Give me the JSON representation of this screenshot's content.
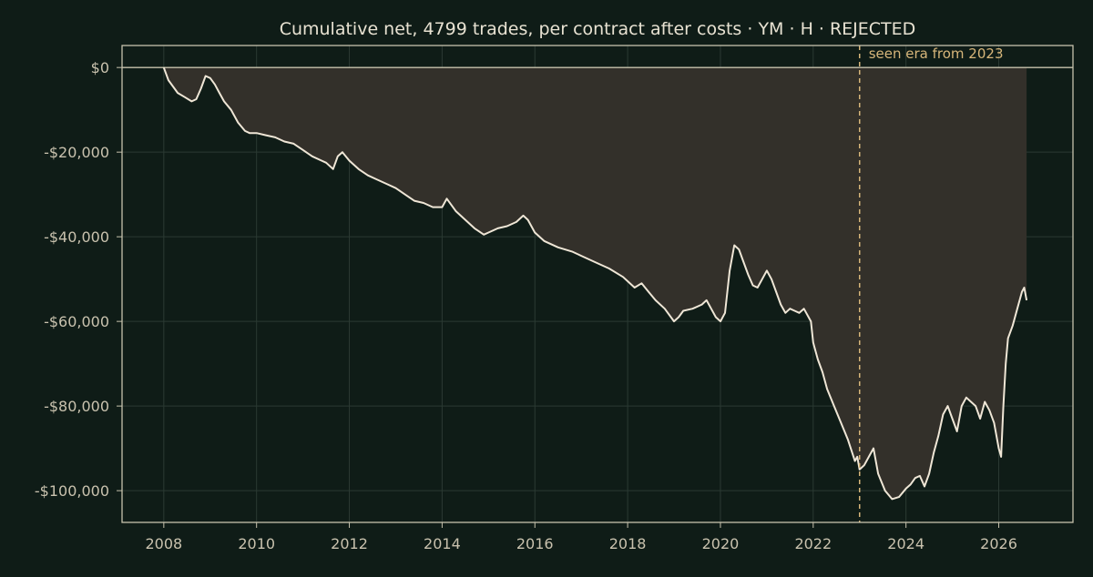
{
  "colors": {
    "background": "#0f1c17",
    "axes": "#c7c2ad",
    "grid": "#2b3a33",
    "line": "#efe6d6",
    "fill": "#33302a",
    "zero_line": "#c7c2ad",
    "era_marker": "#d7b67a",
    "text": "#c9c2ae",
    "title": "#e8e2d2"
  },
  "chart_data": {
    "type": "area",
    "title": "Cumulative net, 4799 trades, per contract after costs  ·  YM · H · REJECTED",
    "xlabel": "",
    "ylabel": "",
    "xlim": [
      2007.1,
      2027.6
    ],
    "ylim": [
      -107500,
      5200
    ],
    "x_ticks": [
      2008,
      2010,
      2012,
      2014,
      2016,
      2018,
      2020,
      2022,
      2024,
      2026
    ],
    "x_tick_labels": [
      "2008",
      "2010",
      "2012",
      "2014",
      "2016",
      "2018",
      "2020",
      "2022",
      "2024",
      "2026"
    ],
    "y_ticks": [
      0,
      -20000,
      -40000,
      -60000,
      -80000,
      -100000
    ],
    "y_tick_labels": [
      "$0",
      "-$20,000",
      "-$40,000",
      "-$60,000",
      "-$80,000",
      "-$100,000"
    ],
    "grid": true,
    "baseline": 0,
    "annotation": {
      "x": 2023.0,
      "text": "seen era from 2023"
    },
    "series": [
      {
        "x": [
          2008.0,
          2008.1,
          2008.2,
          2008.3,
          2008.45,
          2008.6,
          2008.7,
          2008.8,
          2008.9,
          2009.0,
          2009.1,
          2009.2,
          2009.3,
          2009.45,
          2009.6,
          2009.75,
          2009.85,
          2010.0,
          2010.2,
          2010.4,
          2010.6,
          2010.8,
          2011.0,
          2011.2,
          2011.4,
          2011.5,
          2011.65,
          2011.75,
          2011.85,
          2012.0,
          2012.2,
          2012.4,
          2012.6,
          2012.8,
          2013.0,
          2013.2,
          2013.4,
          2013.6,
          2013.8,
          2014.0,
          2014.1,
          2014.3,
          2014.5,
          2014.7,
          2014.9,
          2015.0,
          2015.2,
          2015.4,
          2015.6,
          2015.75,
          2015.85,
          2016.0,
          2016.2,
          2016.5,
          2016.8,
          2017.0,
          2017.3,
          2017.6,
          2017.9,
          2018.0,
          2018.15,
          2018.3,
          2018.45,
          2018.6,
          2018.8,
          2019.0,
          2019.1,
          2019.2,
          2019.4,
          2019.6,
          2019.7,
          2019.8,
          2019.9,
          2020.0,
          2020.1,
          2020.2,
          2020.3,
          2020.4,
          2020.5,
          2020.6,
          2020.7,
          2020.8,
          2020.9,
          2021.0,
          2021.1,
          2021.2,
          2021.3,
          2021.4,
          2021.5,
          2021.6,
          2021.7,
          2021.8,
          2021.95,
          2022.0,
          2022.1,
          2022.2,
          2022.3,
          2022.45,
          2022.6,
          2022.75,
          2022.9,
          2022.95,
          2023.0,
          2023.1,
          2023.2,
          2023.3,
          2023.4,
          2023.55,
          2023.7,
          2023.85,
          2024.0,
          2024.1,
          2024.2,
          2024.3,
          2024.4,
          2024.5,
          2024.6,
          2024.7,
          2024.8,
          2024.9,
          2025.0,
          2025.1,
          2025.2,
          2025.3,
          2025.4,
          2025.5,
          2025.6,
          2025.7,
          2025.8,
          2025.9,
          2026.0,
          2026.05,
          2026.1,
          2026.15,
          2026.2,
          2026.3,
          2026.4,
          2026.5,
          2026.55,
          2026.6
        ],
        "values": [
          0,
          -3000,
          -4500,
          -6000,
          -7000,
          -8000,
          -7500,
          -5000,
          -2000,
          -2500,
          -4000,
          -6000,
          -8000,
          -10000,
          -13000,
          -15000,
          -15500,
          -15500,
          -16000,
          -16500,
          -17500,
          -18000,
          -19500,
          -21000,
          -22000,
          -22500,
          -24000,
          -21000,
          -20000,
          -22000,
          -24000,
          -25500,
          -26500,
          -27500,
          -28500,
          -30000,
          -31500,
          -32000,
          -33000,
          -33000,
          -31000,
          -34000,
          -36000,
          -38000,
          -39500,
          -39000,
          -38000,
          -37500,
          -36500,
          -35000,
          -36000,
          -39000,
          -41000,
          -42500,
          -43500,
          -44500,
          -46000,
          -47500,
          -49500,
          -50500,
          -52000,
          -51000,
          -53000,
          -55000,
          -57000,
          -60000,
          -59000,
          -57500,
          -57000,
          -56000,
          -55000,
          -57000,
          -59000,
          -60000,
          -58000,
          -48000,
          -42000,
          -43000,
          -46000,
          -49000,
          -51500,
          -52000,
          -50000,
          -48000,
          -50000,
          -53000,
          -56000,
          -58000,
          -57000,
          -57500,
          -58000,
          -57000,
          -60000,
          -65000,
          -69000,
          -72000,
          -76000,
          -80000,
          -84000,
          -88000,
          -93000,
          -92000,
          -95000,
          -94000,
          -92000,
          -90000,
          -96000,
          -100000,
          -102000,
          -101500,
          -99500,
          -98500,
          -97000,
          -96500,
          -99000,
          -96000,
          -91000,
          -87000,
          -82000,
          -80000,
          -83000,
          -86000,
          -80000,
          -78000,
          -79000,
          -80000,
          -83000,
          -79000,
          -81000,
          -84000,
          -90000,
          -92000,
          -80000,
          -70000,
          -64000,
          -61000,
          -57000,
          -53000,
          -52000,
          -55000
        ]
      }
    ]
  }
}
